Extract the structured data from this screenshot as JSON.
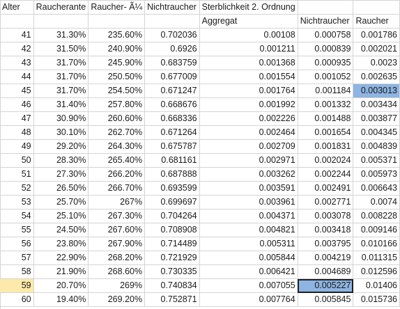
{
  "sheet": {
    "header_row1": [
      "Alter",
      "Raucherante",
      "Raucher- Ã¼",
      "Nichtraucher",
      "Sterblichkeit 2. Ordnung",
      "",
      ""
    ],
    "header_row2": [
      "",
      "",
      "",
      "",
      "Aggregat",
      "Nichtraucher",
      "Raucher"
    ],
    "rows": [
      [
        "41",
        "31.30%",
        "235.60%",
        "0.702036",
        "0.00108",
        "0.000758",
        "0.001786"
      ],
      [
        "42",
        "31.50%",
        "240.90%",
        "0.6926",
        "0.001211",
        "0.000839",
        "0.002021"
      ],
      [
        "43",
        "31.70%",
        "245.90%",
        "0.683759",
        "0.001368",
        "0.000935",
        "0.0023"
      ],
      [
        "44",
        "31.70%",
        "250.50%",
        "0.677009",
        "0.001554",
        "0.001052",
        "0.002635"
      ],
      [
        "45",
        "31.70%",
        "254.50%",
        "0.671247",
        "0.001764",
        "0.001184",
        "0.003013"
      ],
      [
        "46",
        "31.40%",
        "257.80%",
        "0.668676",
        "0.001992",
        "0.001332",
        "0.003434"
      ],
      [
        "47",
        "30.90%",
        "260.60%",
        "0.668336",
        "0.002226",
        "0.001488",
        "0.003877"
      ],
      [
        "48",
        "30.10%",
        "262.70%",
        "0.671264",
        "0.002464",
        "0.001654",
        "0.004345"
      ],
      [
        "49",
        "29.20%",
        "264.30%",
        "0.675787",
        "0.002709",
        "0.001831",
        "0.004839"
      ],
      [
        "50",
        "28.30%",
        "265.40%",
        "0.681161",
        "0.002971",
        "0.002024",
        "0.005371"
      ],
      [
        "51",
        "27.30%",
        "266.20%",
        "0.687888",
        "0.003262",
        "0.002244",
        "0.005973"
      ],
      [
        "52",
        "26.50%",
        "266.70%",
        "0.693599",
        "0.003591",
        "0.002491",
        "0.006643"
      ],
      [
        "53",
        "25.70%",
        "267%",
        "0.699697",
        "0.003961",
        "0.002771",
        "0.0074"
      ],
      [
        "54",
        "25.10%",
        "267.30%",
        "0.704264",
        "0.004371",
        "0.003078",
        "0.008228"
      ],
      [
        "55",
        "24.50%",
        "267.60%",
        "0.708908",
        "0.004821",
        "0.003418",
        "0.009146"
      ],
      [
        "56",
        "23.80%",
        "267.90%",
        "0.714489",
        "0.005311",
        "0.003795",
        "0.010166"
      ],
      [
        "57",
        "22.90%",
        "268.20%",
        "0.721929",
        "0.005844",
        "0.004219",
        "0.011315"
      ],
      [
        "58",
        "21.90%",
        "268.60%",
        "0.730335",
        "0.006421",
        "0.004689",
        "0.012596"
      ],
      [
        "59",
        "20.70%",
        "269%",
        "0.740834",
        "0.007055",
        "0.005227",
        "0.01406"
      ],
      [
        "60",
        "19.40%",
        "269.20%",
        "0.752871",
        "0.007764",
        "0.005845",
        "0.015736"
      ]
    ]
  },
  "colors": {
    "selection": "#8db4e2",
    "row_header_highlight": "#fde9a9",
    "gridline": "#d4d4d4"
  }
}
